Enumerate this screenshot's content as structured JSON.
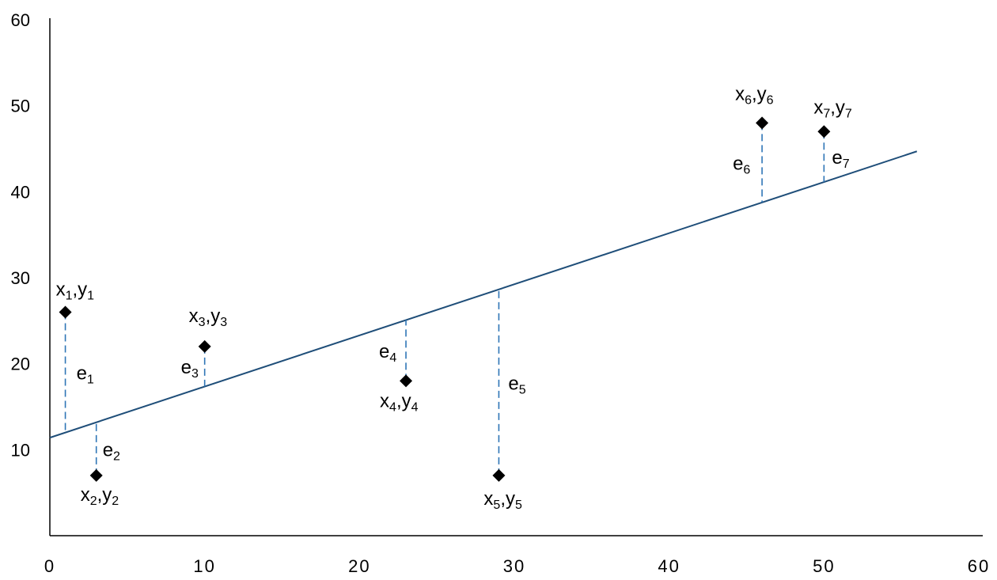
{
  "chart_data": {
    "type": "scatter",
    "xlim": [
      0,
      60
    ],
    "ylim": [
      0,
      60
    ],
    "x_ticks": [
      0,
      10,
      20,
      30,
      40,
      50,
      60
    ],
    "y_ticks": [
      10,
      20,
      30,
      40,
      50,
      60
    ],
    "grid": false,
    "points": [
      {
        "x": 1,
        "y": 26,
        "label": "x",
        "sub": "1",
        "label2": "y",
        "sub2": "1"
      },
      {
        "x": 3,
        "y": 7,
        "label": "x",
        "sub": "2",
        "label2": "y",
        "sub2": "2"
      },
      {
        "x": 10,
        "y": 22,
        "label": "x",
        "sub": "3",
        "label2": "y",
        "sub2": "3"
      },
      {
        "x": 23,
        "y": 18,
        "label": "x",
        "sub": "4",
        "label2": "y",
        "sub2": "4"
      },
      {
        "x": 29,
        "y": 7,
        "label": "x",
        "sub": "5",
        "label2": "y",
        "sub2": "5"
      },
      {
        "x": 46,
        "y": 48,
        "label": "x",
        "sub": "6",
        "label2": "y",
        "sub2": "6"
      },
      {
        "x": 50,
        "y": 47,
        "label": "x",
        "sub": "7",
        "label2": "y",
        "sub2": "7"
      }
    ],
    "residual_labels": [
      {
        "text": "e",
        "sub": "1"
      },
      {
        "text": "e",
        "sub": "2"
      },
      {
        "text": "e",
        "sub": "3"
      },
      {
        "text": "e",
        "sub": "4"
      },
      {
        "text": "e",
        "sub": "5"
      },
      {
        "text": "e",
        "sub": "6"
      },
      {
        "text": "e",
        "sub": "7"
      }
    ],
    "fit_line": {
      "x": [
        0,
        56
      ],
      "y": [
        11.4,
        44.7
      ]
    },
    "colors": {
      "points": "#000000",
      "fit_line": "#1f4e79",
      "residuals": "#2e75b6"
    }
  }
}
